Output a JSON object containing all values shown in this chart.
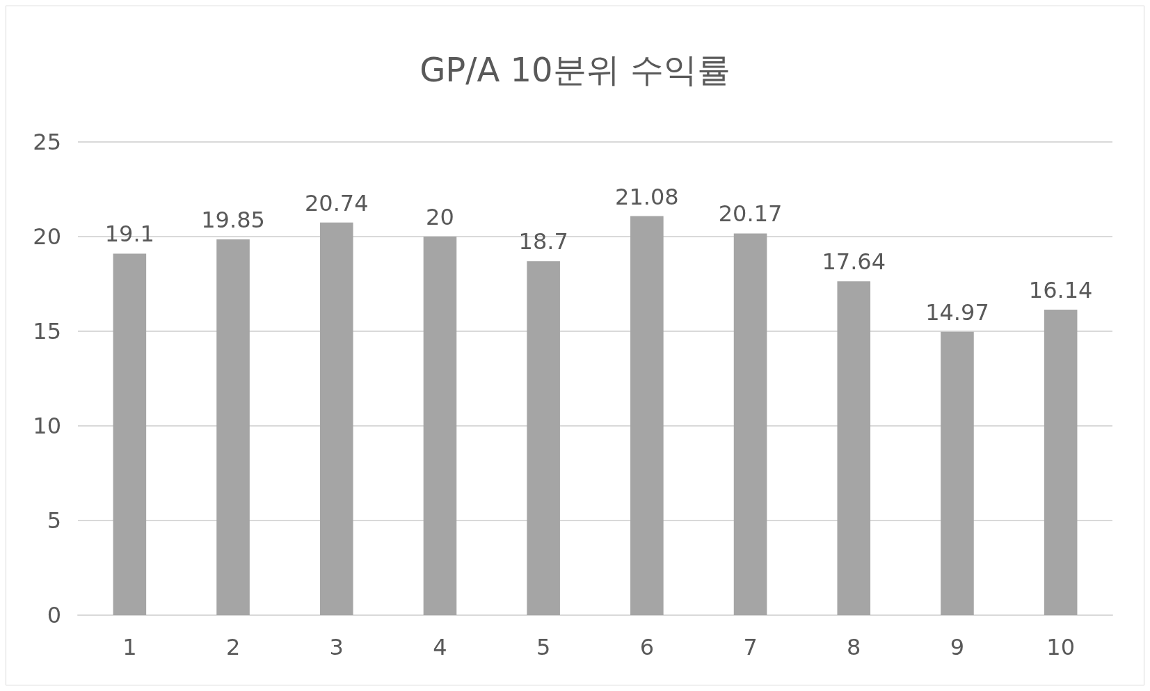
{
  "chart_data": {
    "type": "bar",
    "title": "GP/A 10분위 수익률",
    "categories": [
      "1",
      "2",
      "3",
      "4",
      "5",
      "6",
      "7",
      "8",
      "9",
      "10"
    ],
    "values": [
      19.1,
      19.85,
      20.74,
      20,
      18.7,
      21.08,
      20.17,
      17.64,
      14.97,
      16.14
    ],
    "color": "#a5a5a5",
    "ylim": [
      0,
      25
    ],
    "yticks": [
      0,
      5,
      10,
      15,
      20,
      25
    ],
    "grid": "y",
    "data_labels": true
  }
}
